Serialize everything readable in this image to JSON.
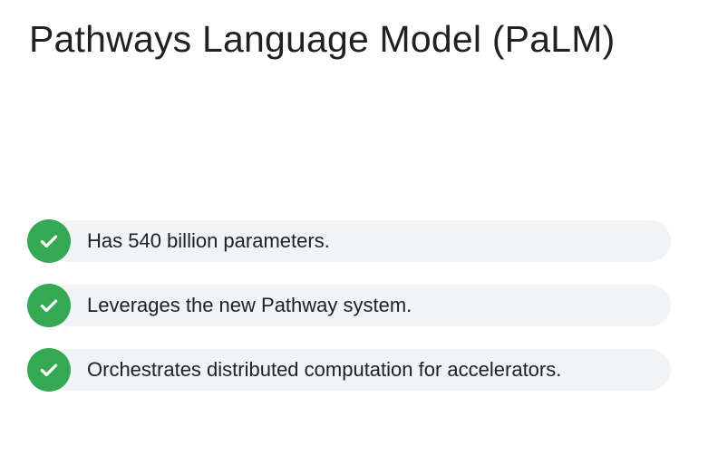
{
  "slide": {
    "title": "Pathways Language Model (PaLM)",
    "items": [
      {
        "text": "Has 540 billion parameters.",
        "icon": "check-circle-icon"
      },
      {
        "text": "Leverages the new Pathway system.",
        "icon": "check-circle-icon"
      },
      {
        "text": "Orchestrates distributed computation for accelerators.",
        "icon": "check-circle-icon"
      }
    ]
  },
  "colors": {
    "check_green": "#34a853",
    "pill_background": "#f1f3f4",
    "text": "#202124"
  }
}
